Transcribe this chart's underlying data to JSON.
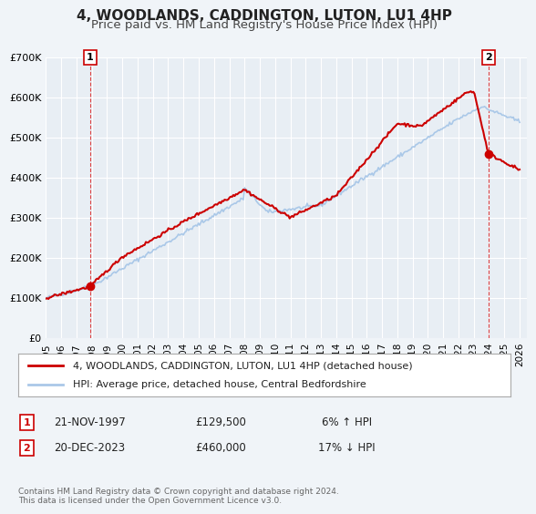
{
  "title": "4, WOODLANDS, CADDINGTON, LUTON, LU1 4HP",
  "subtitle": "Price paid vs. HM Land Registry's House Price Index (HPI)",
  "xlabel": "",
  "ylabel": "",
  "ylim": [
    0,
    700000
  ],
  "xlim_start": 1995.0,
  "xlim_end": 2026.5,
  "yticks": [
    0,
    100000,
    200000,
    300000,
    400000,
    500000,
    600000,
    700000
  ],
  "ytick_labels": [
    "£0",
    "£100K",
    "£200K",
    "£300K",
    "£400K",
    "£500K",
    "£600K",
    "£700K"
  ],
  "xticks": [
    1995,
    1996,
    1997,
    1998,
    1999,
    2000,
    2001,
    2002,
    2003,
    2004,
    2005,
    2006,
    2007,
    2008,
    2009,
    2010,
    2011,
    2012,
    2013,
    2014,
    2015,
    2016,
    2017,
    2018,
    2019,
    2020,
    2021,
    2022,
    2023,
    2024,
    2025,
    2026
  ],
  "background_color": "#f0f4f8",
  "plot_bg_color": "#e8eef4",
  "grid_color": "#ffffff",
  "red_line_color": "#cc0000",
  "blue_line_color": "#aac8e8",
  "sale1_x": 1997.9,
  "sale1_y": 129500,
  "sale1_label": "1",
  "sale1_vline_color": "#dd4444",
  "sale2_x": 2023.97,
  "sale2_y": 460000,
  "sale2_label": "2",
  "sale2_vline_color": "#dd4444",
  "legend_line1": "4, WOODLANDS, CADDINGTON, LUTON, LU1 4HP (detached house)",
  "legend_line2": "HPI: Average price, detached house, Central Bedfordshire",
  "info1_label": "1",
  "info1_date": "21-NOV-1997",
  "info1_price": "£129,500",
  "info1_hpi": "6% ↑ HPI",
  "info2_label": "2",
  "info2_date": "20-DEC-2023",
  "info2_price": "£460,000",
  "info2_hpi": "17% ↓ HPI",
  "footnote": "Contains HM Land Registry data © Crown copyright and database right 2024.\nThis data is licensed under the Open Government Licence v3.0.",
  "title_fontsize": 11,
  "subtitle_fontsize": 9.5
}
